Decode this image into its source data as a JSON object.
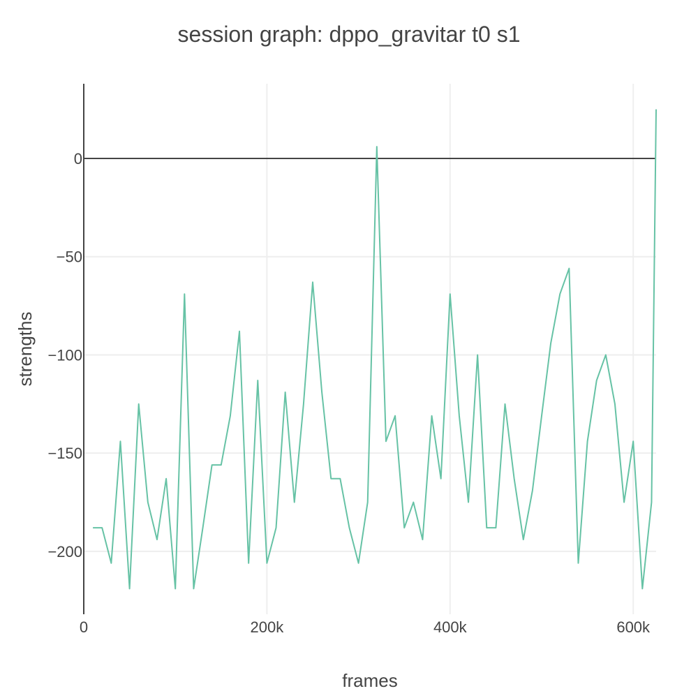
{
  "chart_data": {
    "type": "line",
    "title": "session graph: dppo_gravitar t0 s1",
    "xlabel": "frames",
    "ylabel": "strengths",
    "xlim": [
      0,
      625000
    ],
    "ylim": [
      -232,
      38
    ],
    "x_ticks": [
      {
        "value": 0,
        "label": "0"
      },
      {
        "value": 200000,
        "label": "200k"
      },
      {
        "value": 400000,
        "label": "400k"
      },
      {
        "value": 600000,
        "label": "600k"
      }
    ],
    "y_ticks": [
      {
        "value": 0,
        "label": "0"
      },
      {
        "value": -50,
        "label": "−50"
      },
      {
        "value": -100,
        "label": "−100"
      },
      {
        "value": -150,
        "label": "−150"
      },
      {
        "value": -200,
        "label": "−200"
      }
    ],
    "grid": true,
    "legend": "none",
    "series": [
      {
        "color": "#66c2a5",
        "x": [
          10000,
          20000,
          30000,
          40000,
          50000,
          60000,
          70000,
          80000,
          90000,
          100000,
          110000,
          120000,
          130000,
          140000,
          150000,
          160000,
          170000,
          180000,
          190000,
          200000,
          210000,
          220000,
          230000,
          240000,
          250000,
          260000,
          270000,
          280000,
          290000,
          300000,
          310000,
          320000,
          330000,
          340000,
          350000,
          360000,
          370000,
          380000,
          390000,
          400000,
          410000,
          420000,
          430000,
          440000,
          450000,
          460000,
          470000,
          480000,
          490000,
          500000,
          510000,
          520000,
          530000,
          540000,
          550000,
          560000,
          570000,
          580000,
          590000,
          600000,
          610000,
          620000,
          625000
        ],
        "y": [
          -188,
          -188,
          -206,
          -144,
          -219,
          -125,
          -175,
          -194,
          -163,
          -219,
          -69,
          -219,
          -188,
          -156,
          -156,
          -131,
          -88,
          -206,
          -113,
          -206,
          -188,
          -119,
          -175,
          -125,
          -63,
          -119,
          -163,
          -163,
          -188,
          -206,
          -175,
          6,
          -144,
          -131,
          -188,
          -175,
          -194,
          -131,
          -163,
          -69,
          -131,
          -175,
          -100,
          -188,
          -188,
          -125,
          -163,
          -194,
          -169,
          -131,
          -94,
          -69,
          -56,
          -206,
          -144,
          -113,
          -100,
          -125,
          -175,
          -144,
          -219,
          -175,
          25
        ]
      }
    ]
  }
}
